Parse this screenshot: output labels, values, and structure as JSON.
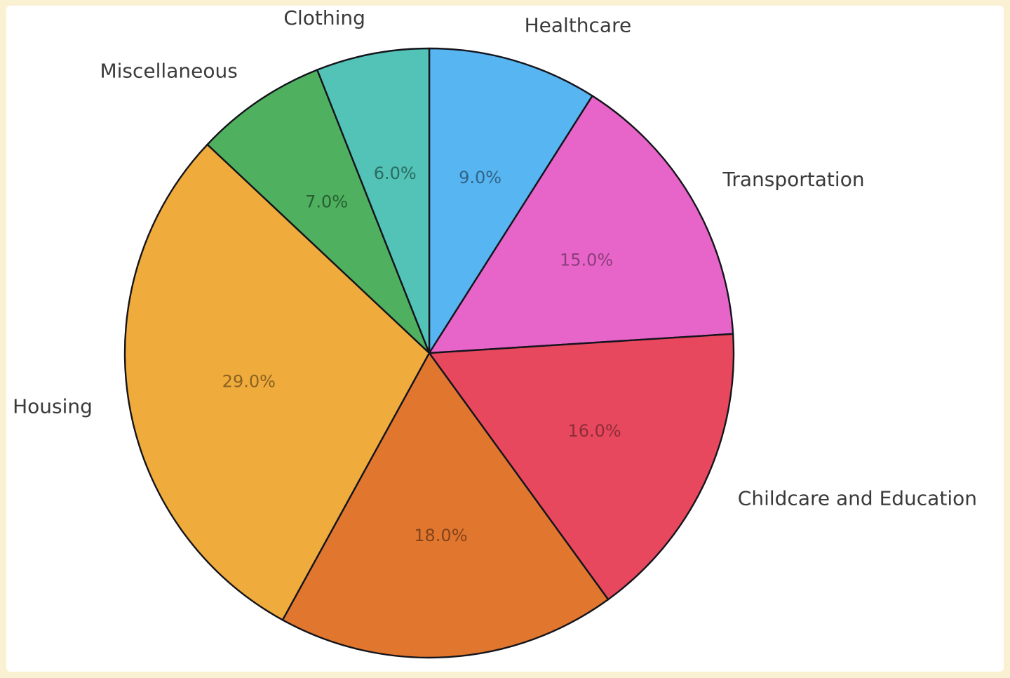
{
  "figure": {
    "frame_color": "#FAF0D2",
    "plot_background": "#FFFFFF"
  },
  "chart_data": {
    "type": "pie",
    "title": "",
    "start_angle": 90,
    "direction": "clockwise",
    "legend": "none",
    "grid": false,
    "label_color": "#3A3A3A",
    "edge_color": "#14141C",
    "slices": [
      {
        "label": "Healthcare",
        "value": 9.0,
        "pct_text": "9.0%",
        "color": "#57B5F2",
        "pct_color": "#2F6486"
      },
      {
        "label": "Transportation",
        "value": 15.0,
        "pct_text": "15.0%",
        "color": "#E765C8",
        "pct_color": "#8C3D7C"
      },
      {
        "label": "Childcare and Education",
        "value": 16.0,
        "pct_text": "16.0%",
        "color": "#E8485E",
        "pct_color": "#8E2C3A"
      },
      {
        "label": "",
        "value": 18.0,
        "pct_text": "18.0%",
        "color": "#E1762F",
        "pct_color": "#84431A"
      },
      {
        "label": "Housing",
        "value": 29.0,
        "pct_text": "29.0%",
        "color": "#F0AB3D",
        "pct_color": "#8A6220"
      },
      {
        "label": "Miscellaneous",
        "value": 7.0,
        "pct_text": "7.0%",
        "color": "#4FB15F",
        "pct_color": "#275E31"
      },
      {
        "label": "Clothing",
        "value": 6.0,
        "pct_text": "6.0%",
        "color": "#52C3B6",
        "pct_color": "#2B6B62"
      }
    ]
  }
}
